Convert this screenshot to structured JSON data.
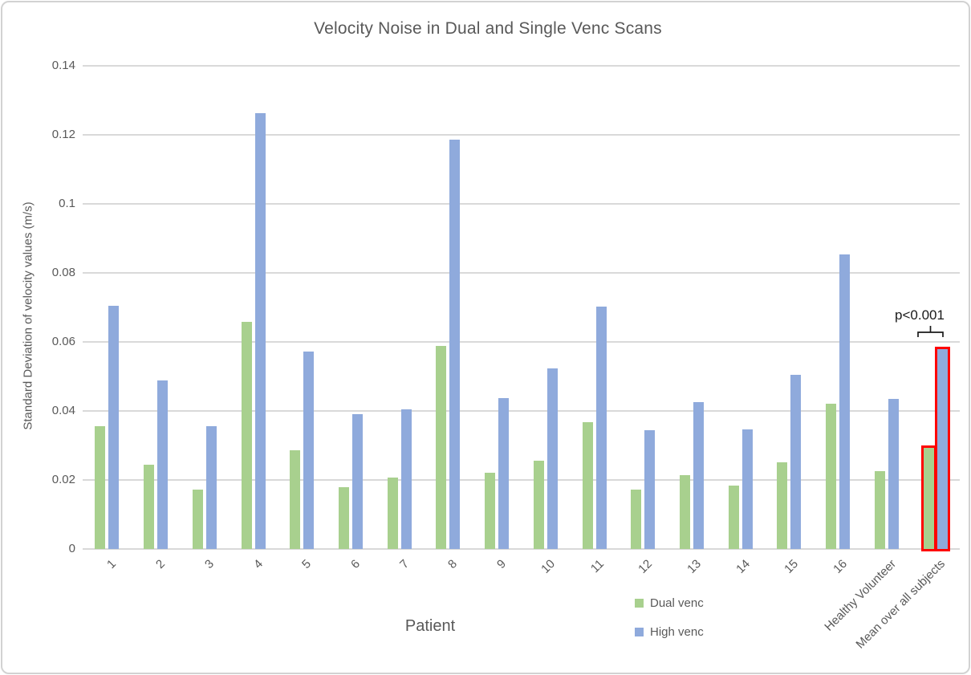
{
  "chart_data": {
    "type": "bar",
    "title": "Velocity Noise in Dual and Single Venc Scans",
    "xlabel": "Patient",
    "ylabel": "Standard Deviation of velocity values (m/s)",
    "ylim": [
      0,
      0.14
    ],
    "ytick_values": [
      0,
      0.02,
      0.04,
      0.06,
      0.08,
      0.1,
      0.12,
      0.14
    ],
    "ytick_labels": [
      "0",
      "0.02",
      "0.04",
      "0.06",
      "0.08",
      "0.1",
      "0.12",
      "0.14"
    ],
    "grid": true,
    "gridline_color": "#d9d9d9",
    "text_color": "#595959",
    "legend_position": "bottom",
    "categories": [
      "1",
      "2",
      "3",
      "4",
      "5",
      "6",
      "7",
      "8",
      "9",
      "10",
      "11",
      "12",
      "13",
      "14",
      "15",
      "16",
      "Healthy Volunteer",
      "Mean over all subjects"
    ],
    "series": [
      {
        "name": "Dual venc",
        "color": "#a8d08e",
        "values": [
          0.0355,
          0.0245,
          0.0172,
          0.0657,
          0.0287,
          0.0179,
          0.0206,
          0.0589,
          0.0222,
          0.0255,
          0.0367,
          0.0172,
          0.0213,
          0.0184,
          0.0252,
          0.042,
          0.0225,
          0.0292
        ]
      },
      {
        "name": "High venc",
        "color": "#8faadc",
        "values": [
          0.0704,
          0.0488,
          0.0355,
          0.1263,
          0.0572,
          0.039,
          0.0404,
          0.1185,
          0.0437,
          0.0523,
          0.0703,
          0.0344,
          0.0426,
          0.0347,
          0.0505,
          0.0853,
          0.0436,
          0.0578
        ]
      }
    ],
    "highlighted_category": "Mean over all subjects",
    "highlight_color": "#ff0000",
    "annotation": {
      "text": "p<0.001",
      "target": "Mean over all subjects"
    }
  }
}
